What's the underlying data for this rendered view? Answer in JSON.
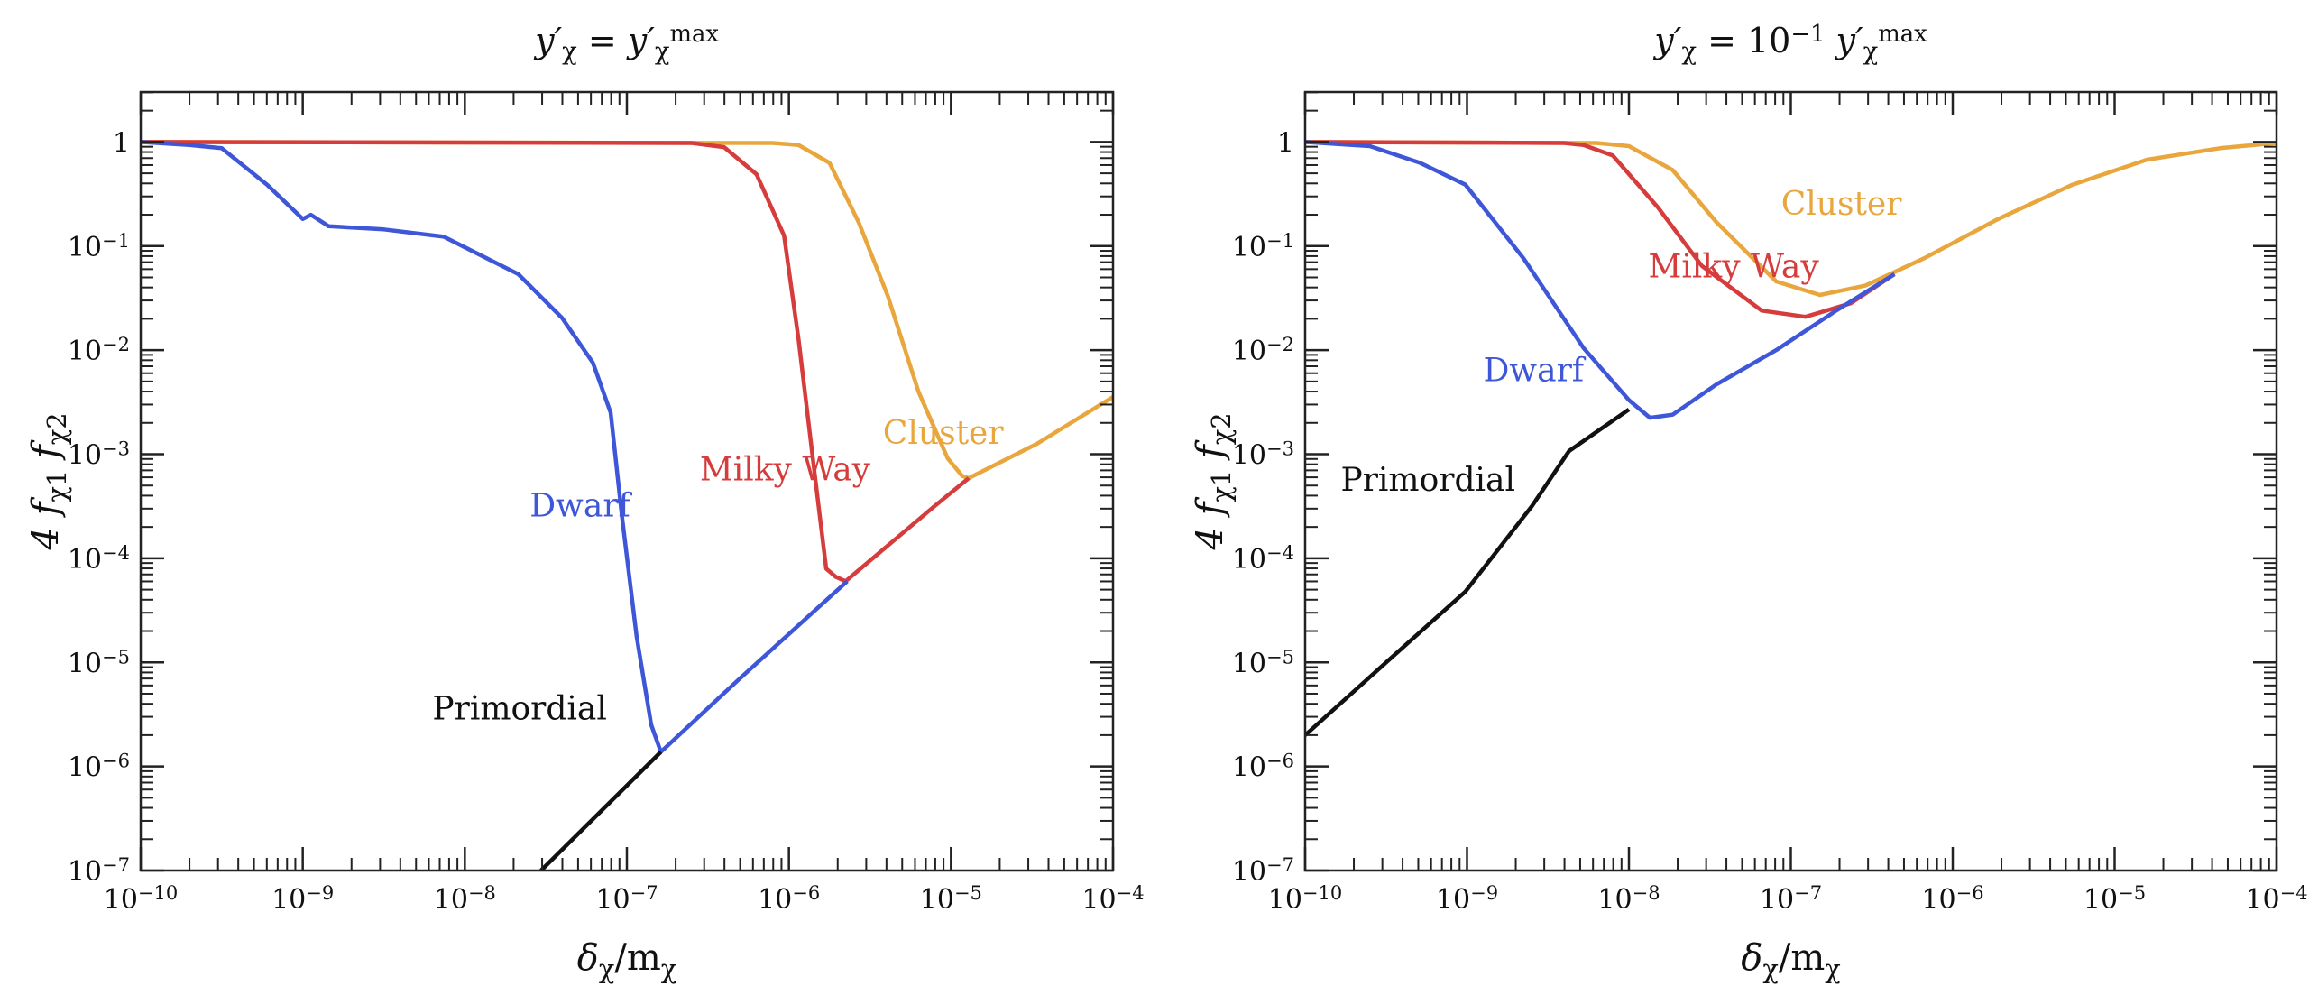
{
  "chart_data": [
    {
      "type": "line",
      "title": [
        [
          "y′",
          ""
        ],
        [
          "χ",
          "sub"
        ],
        [
          " = y′",
          ""
        ],
        [
          "χ",
          "sub"
        ],
        [
          "max",
          "sup"
        ]
      ],
      "xlabel": [
        [
          "δ",
          ""
        ],
        [
          "χ",
          "sub"
        ],
        [
          "/m",
          ""
        ],
        [
          "χ",
          "sub"
        ]
      ],
      "ylabel": [
        [
          "4  f",
          ""
        ],
        [
          "χ1",
          "sub"
        ],
        [
          "  f",
          ""
        ],
        [
          "χ2",
          "sub"
        ]
      ],
      "x_scale": "log",
      "y_scale": "log",
      "xlim": [
        1e-10,
        0.0001
      ],
      "ylim": [
        1e-07,
        3
      ],
      "x_ticks": [
        "10^-10",
        "10^-9",
        "10^-8",
        "10^-7",
        "10^-6",
        "10^-5",
        "10^-4"
      ],
      "y_ticks": [
        "10^-7",
        "10^-6",
        "10^-5",
        "10^-4",
        "10^-3",
        "10^-2",
        "10^-1",
        "1"
      ],
      "grid": false,
      "series": [
        {
          "name": "Primordial",
          "color": "#111111",
          "log10_x": [
            -7.53,
            -6.79
          ],
          "log10_y": [
            -7.0,
            -5.86
          ]
        },
        {
          "name": "Dwarf",
          "color": "#3e56d8",
          "log10_x": [
            -10,
            -9.7,
            -9.5,
            -9.22,
            -9.0,
            -8.95,
            -8.84,
            -8.5,
            -8.13,
            -7.67,
            -7.4,
            -7.21,
            -7.1,
            -7.03,
            -6.94,
            -6.85,
            -6.79,
            -6.3,
            -5.64
          ],
          "log10_y": [
            0,
            -0.03,
            -0.06,
            -0.41,
            -0.74,
            -0.7,
            -0.81,
            -0.84,
            -0.91,
            -1.27,
            -1.69,
            -2.12,
            -2.6,
            -3.6,
            -4.75,
            -5.6,
            -5.86,
            -5.15,
            -4.22
          ]
        },
        {
          "name": "Milky Way",
          "color": "#d63c3c",
          "log10_x": [
            -10,
            -6.6,
            -6.4,
            -6.2,
            -6.03,
            -5.94,
            -5.84,
            -5.77,
            -5.71,
            -5.65,
            -5.11,
            -4.89
          ],
          "log10_y": [
            0,
            -0.01,
            -0.05,
            -0.31,
            -0.9,
            -1.9,
            -3.2,
            -4.1,
            -4.18,
            -4.22,
            -3.51,
            -3.23
          ]
        },
        {
          "name": "Cluster",
          "color": "#e8a63c",
          "log10_x": [
            -10,
            -6.1,
            -5.94,
            -5.75,
            -5.57,
            -5.39,
            -5.2,
            -5.02,
            -4.93,
            -4.89,
            -4.47,
            -4.0
          ],
          "log10_y": [
            0,
            -0.01,
            -0.03,
            -0.2,
            -0.77,
            -1.48,
            -2.4,
            -3.04,
            -3.21,
            -3.23,
            -2.9,
            -2.45
          ]
        }
      ]
    },
    {
      "type": "line",
      "title": [
        [
          "y′",
          ""
        ],
        [
          "χ",
          "sub"
        ],
        [
          " = 10",
          ""
        ],
        [
          "−1",
          "sup"
        ],
        [
          "  y′",
          ""
        ],
        [
          "χ",
          "sub"
        ],
        [
          "max",
          "sup"
        ]
      ],
      "xlabel": [
        [
          "δ",
          ""
        ],
        [
          "χ",
          "sub"
        ],
        [
          "/m",
          ""
        ],
        [
          "χ",
          "sub"
        ]
      ],
      "ylabel": [
        [
          "4  f",
          ""
        ],
        [
          "χ1",
          "sub"
        ],
        [
          "  f",
          ""
        ],
        [
          "χ2",
          "sub"
        ]
      ],
      "x_scale": "log",
      "y_scale": "log",
      "xlim": [
        1e-10,
        0.0001
      ],
      "ylim": [
        1e-07,
        3
      ],
      "x_ticks": [
        "10^-10",
        "10^-9",
        "10^-8",
        "10^-7",
        "10^-6",
        "10^-5",
        "10^-4"
      ],
      "y_ticks": [
        "10^-7",
        "10^-6",
        "10^-5",
        "10^-4",
        "10^-3",
        "10^-2",
        "10^-1",
        "1"
      ],
      "grid": false,
      "series": [
        {
          "name": "Primordial",
          "color": "#111111",
          "log10_x": [
            -10,
            -9.5,
            -9.01,
            -8.6,
            -8.37,
            -8.0
          ],
          "log10_y": [
            -5.7,
            -5.0,
            -4.32,
            -3.5,
            -2.97,
            -2.57
          ]
        },
        {
          "name": "Dwarf",
          "color": "#3e56d8",
          "log10_x": [
            -10,
            -9.6,
            -9.29,
            -9.01,
            -8.65,
            -8.28,
            -8.0,
            -7.87,
            -7.73,
            -7.46,
            -7.09,
            -6.72,
            -6.36
          ],
          "log10_y": [
            0,
            -0.04,
            -0.2,
            -0.41,
            -1.12,
            -1.98,
            -2.48,
            -2.65,
            -2.62,
            -2.33,
            -2.0,
            -1.62,
            -1.27
          ]
        },
        {
          "name": "Milky Way",
          "color": "#d63c3c",
          "log10_x": [
            -10,
            -8.4,
            -8.28,
            -8.1,
            -7.82,
            -7.55,
            -7.18,
            -6.91,
            -6.63,
            -6.36
          ],
          "log10_y": [
            0,
            -0.01,
            -0.03,
            -0.13,
            -0.63,
            -1.19,
            -1.62,
            -1.68,
            -1.55,
            -1.27
          ]
        },
        {
          "name": "Cluster",
          "color": "#e8a63c",
          "log10_x": [
            -10,
            -8.2,
            -8.0,
            -7.73,
            -7.46,
            -7.09,
            -6.82,
            -6.54,
            -6.18,
            -5.72,
            -5.26,
            -4.8,
            -4.35,
            -4.0
          ],
          "log10_y": [
            0,
            -0.01,
            -0.04,
            -0.27,
            -0.77,
            -1.34,
            -1.47,
            -1.38,
            -1.12,
            -0.74,
            -0.41,
            -0.17,
            -0.06,
            -0.01
          ]
        }
      ]
    }
  ]
}
